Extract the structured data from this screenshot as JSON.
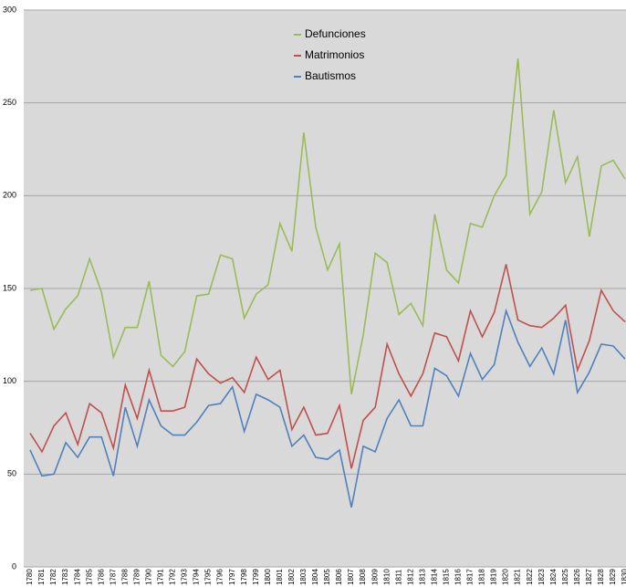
{
  "chart_data": {
    "type": "line",
    "categories": [
      "1780",
      "1781",
      "1782",
      "1783",
      "1784",
      "1785",
      "1786",
      "1787",
      "1788",
      "1789",
      "1790",
      "1791",
      "1792",
      "1793",
      "1794",
      "1795",
      "1796",
      "1797",
      "1798",
      "1799",
      "1800",
      "1801",
      "1802",
      "1803",
      "1804",
      "1805",
      "1806",
      "1807",
      "1808",
      "1809",
      "1810",
      "1811",
      "1812",
      "1813",
      "1814",
      "1815",
      "1816",
      "1817",
      "1818",
      "1819",
      "1820",
      "1821",
      "1822",
      "1823",
      "1824",
      "1825",
      "1826",
      "1827",
      "1828",
      "1829",
      "1830"
    ],
    "series": [
      {
        "name": "Defunciones",
        "color": "#9bbb59",
        "values": [
          149,
          150,
          128,
          139,
          146,
          166,
          148,
          113,
          129,
          129,
          154,
          114,
          108,
          116,
          146,
          147,
          168,
          166,
          134,
          147,
          152,
          185,
          170,
          234,
          183,
          160,
          174,
          93,
          125,
          169,
          164,
          136,
          142,
          130,
          190,
          160,
          153,
          185,
          183,
          200,
          211,
          274,
          190,
          202,
          246,
          207,
          221,
          178,
          216,
          219,
          209
        ]
      },
      {
        "name": "Matrimonios",
        "color": "#c0504d",
        "values": [
          72,
          62,
          76,
          83,
          66,
          88,
          83,
          64,
          98,
          80,
          106,
          84,
          84,
          86,
          112,
          104,
          99,
          102,
          94,
          113,
          101,
          106,
          74,
          86,
          71,
          72,
          87,
          53,
          79,
          86,
          120,
          104,
          92,
          104,
          126,
          124,
          111,
          138,
          124,
          137,
          163,
          133,
          130,
          129,
          134,
          141,
          106,
          122,
          149,
          138,
          132
        ]
      },
      {
        "name": "Bautismos",
        "color": "#4f81bd",
        "values": [
          63,
          49,
          50,
          67,
          59,
          70,
          70,
          49,
          86,
          65,
          90,
          76,
          71,
          71,
          78,
          87,
          88,
          97,
          73,
          93,
          90,
          86,
          65,
          71,
          59,
          58,
          63,
          32,
          65,
          62,
          80,
          90,
          76,
          76,
          107,
          103,
          92,
          115,
          101,
          109,
          138,
          121,
          108,
          118,
          104,
          133,
          94,
          105,
          120,
          119,
          112
        ]
      }
    ],
    "ylim": [
      0,
      300
    ],
    "yticks": [
      0,
      50,
      100,
      150,
      200,
      250,
      300
    ],
    "grid": true,
    "legend": "upper center"
  }
}
